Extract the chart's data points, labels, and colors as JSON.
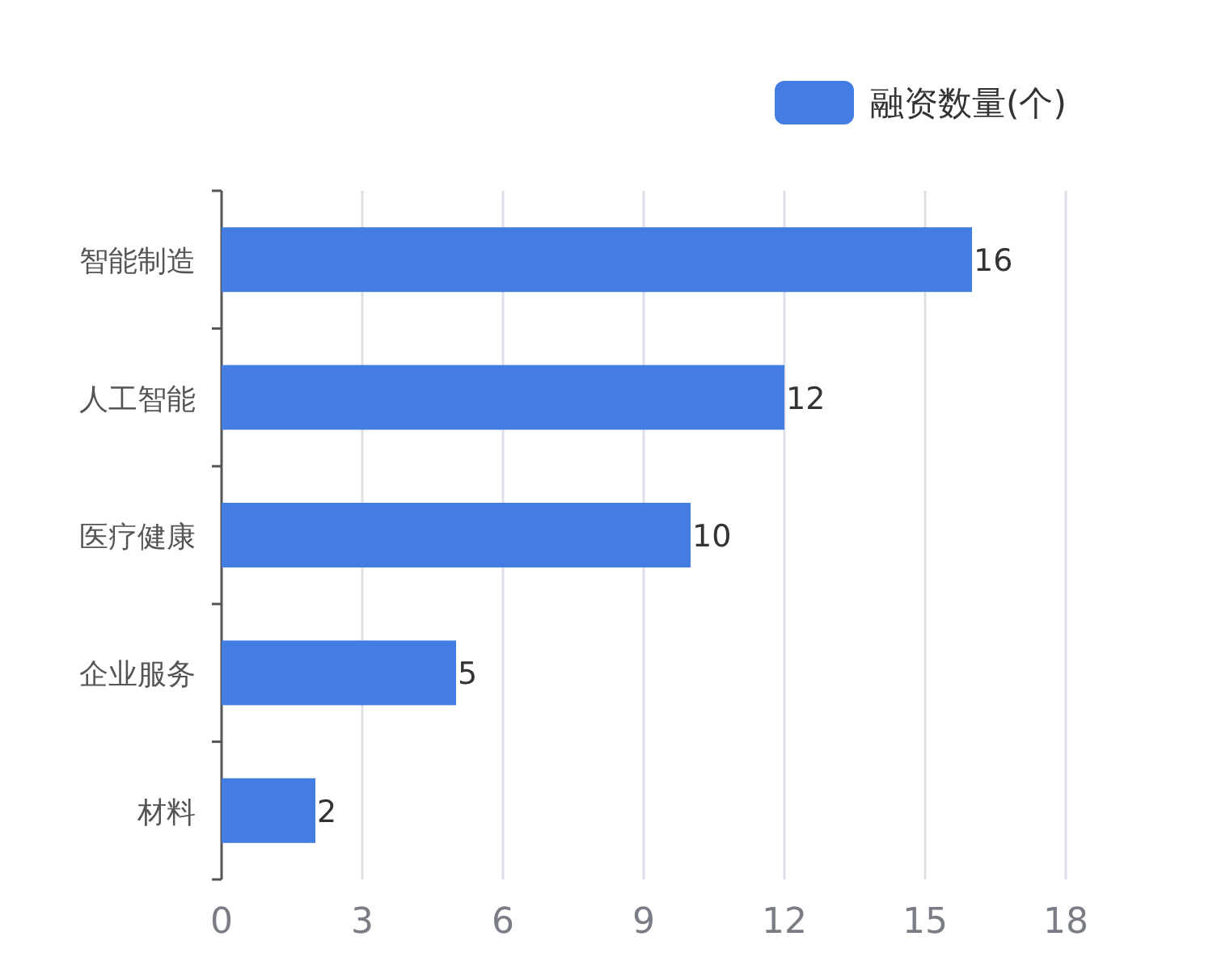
{
  "chart_data": {
    "type": "bar",
    "orientation": "horizontal",
    "categories": [
      "智能制造",
      "人工智能",
      "医疗健康",
      "企业服务",
      "材料"
    ],
    "series": [
      {
        "name": "融资数量(个)",
        "color": "#437ce2",
        "values": [
          16,
          12,
          10,
          5,
          2
        ]
      }
    ],
    "xlim": [
      0,
      18
    ],
    "xticks": [
      0,
      3,
      6,
      9,
      12,
      15,
      18
    ],
    "grid": "x",
    "legend": "top right",
    "data_labels": true
  }
}
